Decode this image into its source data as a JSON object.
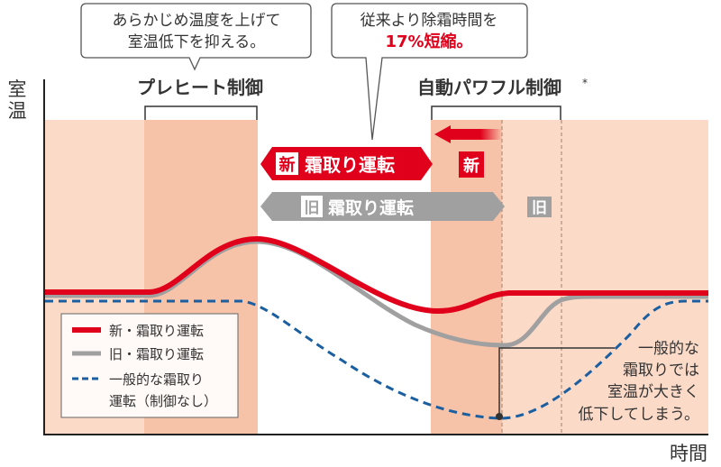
{
  "axes": {
    "y_label_1": "室",
    "y_label_2": "温",
    "x_label": "時間"
  },
  "callouts": [
    {
      "line1": "あらかじめ温度を上げて",
      "line2": "室温低下を抑える。"
    },
    {
      "line1": "従来より除霜時間を",
      "line2": "17%短縮。"
    }
  ],
  "phases": {
    "preheat": "プレヒート制御",
    "auto_powerful": "自動パワフル制御",
    "asterisk": "*"
  },
  "arrows": {
    "new_badge": "新",
    "new_label": "霜取り運転",
    "old_badge": "旧",
    "old_label": "霜取り運転",
    "new_tag": "新",
    "old_tag": "旧"
  },
  "legend": [
    {
      "label": "新・霜取り運転"
    },
    {
      "label": "旧・霜取り運転"
    },
    {
      "label_line1": "一般的な霜取り",
      "label_line2": "運転（制御なし）"
    }
  ],
  "annotation": [
    "一般的な",
    "霜取りでは",
    "室温が大きく",
    "低下してしまう。"
  ],
  "colors": {
    "red": "#e0001b",
    "gray": "#a0a0a0",
    "blue": "#1b5fa0",
    "light_band": "#fbdac8",
    "dark_band": "#f6c3a8"
  }
}
